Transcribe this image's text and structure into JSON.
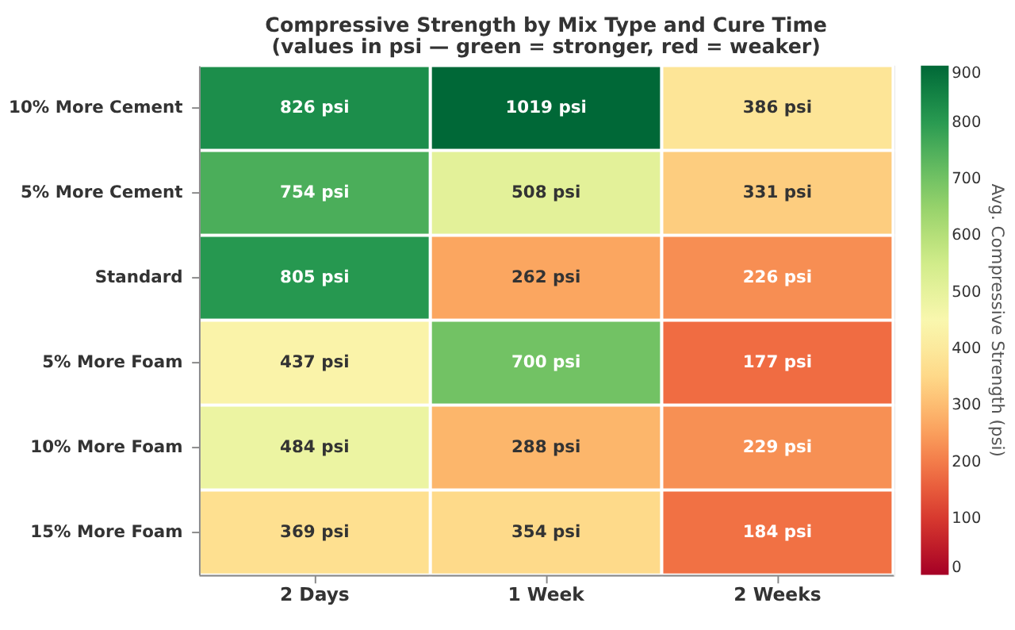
{
  "chart_data": {
    "type": "heatmap",
    "title": "Compressive Strength by Mix Type and Cure Time",
    "subtitle": "(values in psi — green = stronger, red = weaker)",
    "categories": [
      "2 Days",
      "1 Week",
      "2 Weeks"
    ],
    "y_categories": [
      "10% More Cement",
      "5% More Cement",
      "Standard",
      "5% More Foam",
      "10% More Foam",
      "15% More Foam"
    ],
    "cells": [
      [
        826,
        1019,
        386
      ],
      [
        754,
        508,
        331
      ],
      [
        805,
        262,
        226
      ],
      [
        437,
        700,
        177
      ],
      [
        484,
        288,
        229
      ],
      [
        369,
        354,
        184
      ]
    ],
    "cell_labels": [
      [
        "826 psi",
        "1019 psi",
        "386 psi"
      ],
      [
        "754 psi",
        "508 psi",
        "331 psi"
      ],
      [
        "805 psi",
        "262 psi",
        "226 psi"
      ],
      [
        "437 psi",
        "700 psi",
        "177 psi"
      ],
      [
        "484 psi",
        "288 psi",
        "229 psi"
      ],
      [
        "369 psi",
        "354 psi",
        "184 psi"
      ]
    ],
    "clabel": "Avg. Compressive Strength (psi)",
    "clim": [
      0,
      900
    ],
    "cticks": [
      0,
      100,
      200,
      300,
      400,
      500,
      600,
      700,
      800,
      900
    ]
  }
}
